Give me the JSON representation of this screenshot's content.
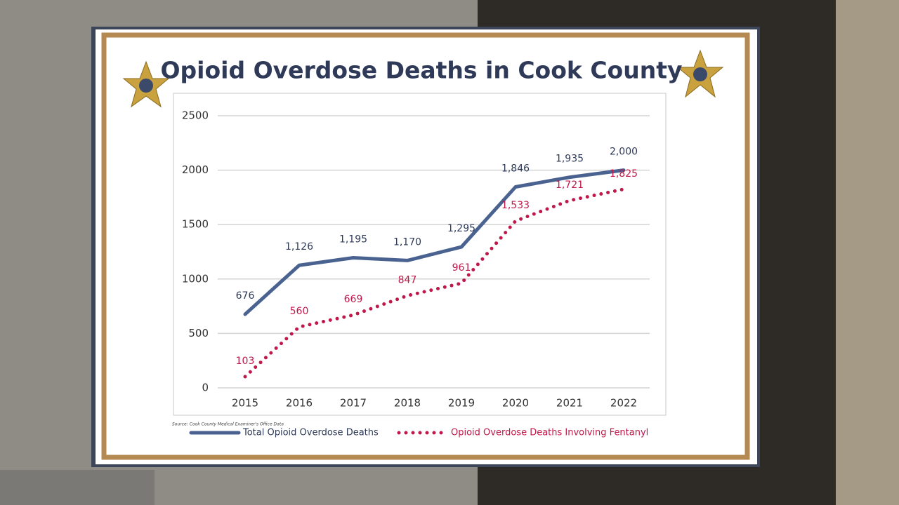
{
  "chart_data": {
    "type": "line",
    "title": "Opioid Overdose Deaths in Cook County",
    "source": "Source: Cook County Medical Examiner's Office Data",
    "categories": [
      "2015",
      "2016",
      "2017",
      "2018",
      "2019",
      "2020",
      "2021",
      "2022"
    ],
    "series": [
      {
        "name": "Total Opioid Overdose Deaths",
        "color": "#4a6290",
        "style": "solid",
        "values": [
          676,
          1126,
          1195,
          1170,
          1295,
          1846,
          1935,
          2000
        ],
        "value_labels": [
          "676",
          "1,126",
          "1,195",
          "1,170",
          "1,295",
          "1,846",
          "1,935",
          "2,000"
        ]
      },
      {
        "name": "Opioid Overdose Deaths Involving Fentanyl",
        "color": "#c0184a",
        "style": "dotted",
        "values": [
          103,
          560,
          669,
          847,
          961,
          1533,
          1721,
          1825
        ],
        "value_labels": [
          "103",
          "560",
          "669",
          "847",
          "961",
          "1,533",
          "1,721",
          "1,825"
        ]
      }
    ],
    "ylim": [
      0,
      2500
    ],
    "yticks": [
      0,
      500,
      1000,
      1500,
      2000,
      2500
    ],
    "grid": true
  }
}
